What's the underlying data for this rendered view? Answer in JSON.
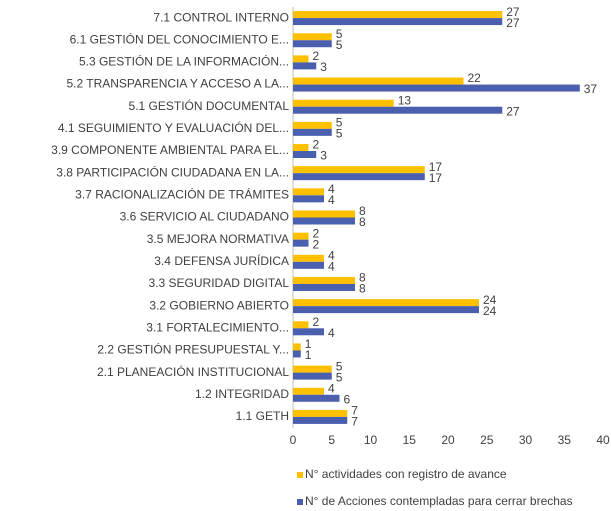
{
  "chart_data": {
    "type": "hbar",
    "categories": [
      "7.1 CONTROL INTERNO",
      "6.1 GESTIÓN DEL CONOCIMIENTO E...",
      "5.3 GESTIÓN DE LA INFORMACIÓN...",
      "5.2 TRANSPARENCIA Y ACCESO A LA...",
      "5.1 GESTIÓN DOCUMENTAL",
      "4.1 SEGUIMIENTO Y EVALUACIÓN DEL...",
      "3.9 COMPONENTE AMBIENTAL PARA EL...",
      "3.8 PARTICIPACIÓN CIUDADANA EN LA...",
      "3.7 RACIONALIZACIÓN DE TRÁMITES",
      "3.6 SERVICIO AL CIUDADANO",
      "3.5 MEJORA NORMATIVA",
      "3.4 DEFENSA JURÍDICA",
      "3.3 SEGURIDAD DIGITAL",
      "3.2 GOBIERNO ABIERTO",
      "3.1 FORTALECIMIENTO...",
      "2.2 GESTIÓN PRESUPUESTAL Y...",
      "2.1 PLANEACIÓN INSTITUCIONAL",
      "1.2 INTEGRIDAD",
      "1.1 GETH"
    ],
    "series": [
      {
        "name": "N° actividades con registro de avance",
        "color": "#FFC000",
        "values": [
          27,
          5,
          2,
          22,
          13,
          5,
          2,
          17,
          4,
          8,
          2,
          4,
          8,
          24,
          2,
          1,
          5,
          4,
          7
        ]
      },
      {
        "name": "N° de Acciones contempladas para cerrar brechas",
        "color": "#4A5FAE",
        "values": [
          27,
          5,
          3,
          37,
          27,
          5,
          3,
          17,
          4,
          8,
          2,
          4,
          8,
          24,
          4,
          1,
          5,
          6,
          7
        ]
      }
    ],
    "xlim": [
      0,
      40
    ],
    "xticks": [
      0,
      5,
      10,
      15,
      20,
      25,
      30,
      35,
      40
    ],
    "grid": false,
    "legend": "bottom"
  }
}
